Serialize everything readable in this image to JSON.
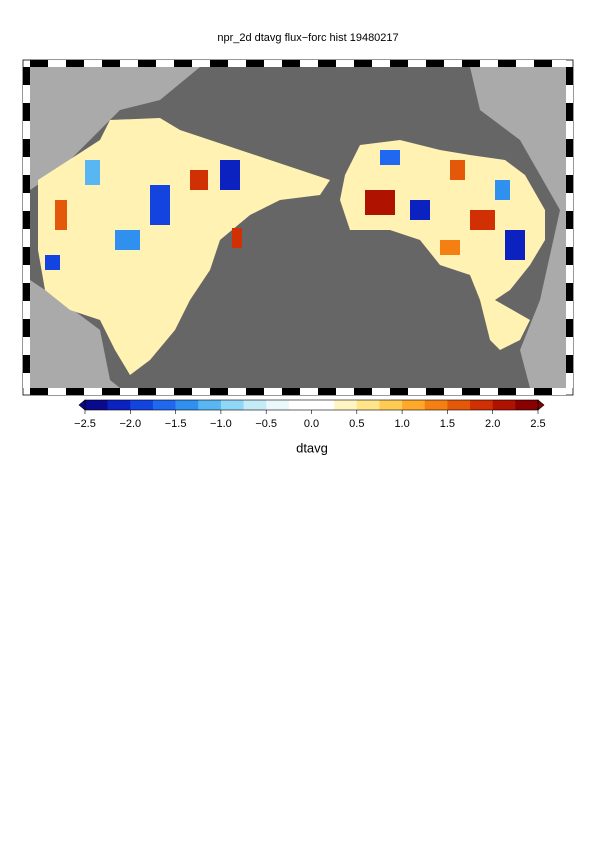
{
  "title": "npr_2d dtavg flux−forc hist 19480217",
  "colorbar": {
    "label": "dtavg",
    "ticks": [
      {
        "value": -2.5,
        "label": "−2.5"
      },
      {
        "value": -2.0,
        "label": "−2.0"
      },
      {
        "value": -1.5,
        "label": "−1.5"
      },
      {
        "value": -1.0,
        "label": "−1.0"
      },
      {
        "value": -0.5,
        "label": "−0.5"
      },
      {
        "value": 0,
        "label": "0.0"
      },
      0.5,
      {
        "value": 1.0,
        "label": "1.0"
      },
      1.5,
      {
        "value": 2.0,
        "label": "2.0"
      },
      2.5
    ],
    "colors": [
      "#0a0a8c",
      "#0c22c0",
      "#1444e0",
      "#2068f0",
      "#3090f0",
      "#58b6f2",
      "#90d6f6",
      "#c6ebf8",
      "#eaf7fb",
      "#ffffff",
      "#ffffff",
      "#fff5c4",
      "#ffe48a",
      "#ffcb52",
      "#ffa82a",
      "#f48014",
      "#e4580a",
      "#d03004",
      "#b01200",
      "#880000"
    ]
  }
}
